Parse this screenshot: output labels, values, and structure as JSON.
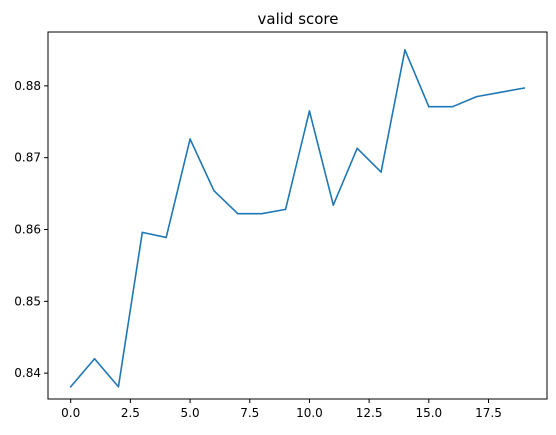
{
  "chart_data": {
    "type": "line",
    "title": "valid score",
    "xlabel": "",
    "ylabel": "",
    "xlim": [
      -0.95,
      19.95
    ],
    "ylim": [
      0.8364,
      0.8875
    ],
    "xticks": [
      0.0,
      2.5,
      5.0,
      7.5,
      10.0,
      12.5,
      15.0,
      17.5
    ],
    "xtick_labels": [
      "0.0",
      "2.5",
      "5.0",
      "7.5",
      "10.0",
      "12.5",
      "15.0",
      "17.5"
    ],
    "yticks": [
      0.84,
      0.85,
      0.86,
      0.87,
      0.88
    ],
    "ytick_labels": [
      "0.84",
      "0.85",
      "0.86",
      "0.87",
      "0.88"
    ],
    "grid": false,
    "series": [
      {
        "color": "#1f77b4",
        "x": [
          0,
          1,
          2,
          3,
          4,
          5,
          6,
          7,
          8,
          9,
          10,
          11,
          12,
          13,
          14,
          15,
          16,
          17,
          18,
          19
        ],
        "values": [
          0.8381,
          0.842,
          0.8381,
          0.8596,
          0.8589,
          0.8726,
          0.8654,
          0.8622,
          0.8622,
          0.8628,
          0.8765,
          0.8634,
          0.8713,
          0.868,
          0.885,
          0.8771,
          0.8771,
          0.8785,
          0.8791,
          0.8797
        ]
      }
    ]
  }
}
